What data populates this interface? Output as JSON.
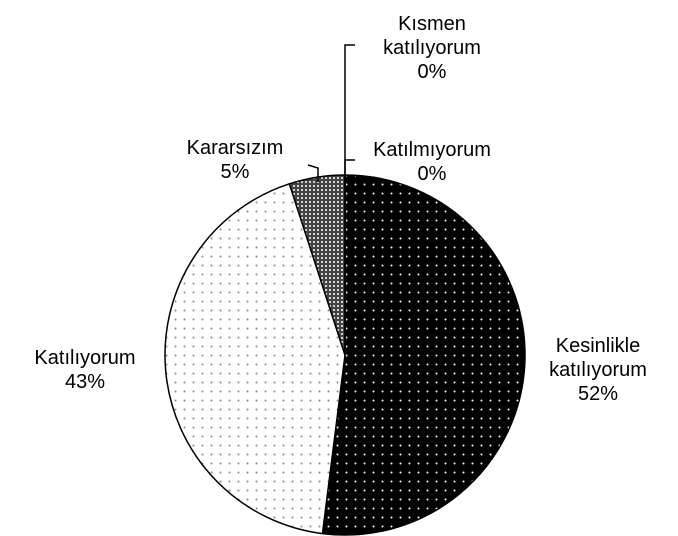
{
  "chart_data": {
    "type": "pie",
    "categories": [
      "Kesinlikle katılıyorum",
      "Katılıyorum",
      "Kararsızım",
      "Katılmıyorum",
      "Kısmen katılıyorum"
    ],
    "values": [
      52,
      43,
      5,
      0,
      0
    ],
    "value_labels": [
      "52%",
      "43%",
      "5%",
      "0%",
      "0%"
    ],
    "colors": [
      "#000000",
      "#ffffff",
      "#444444",
      "#ffffff",
      "#ffffff"
    ]
  }
}
